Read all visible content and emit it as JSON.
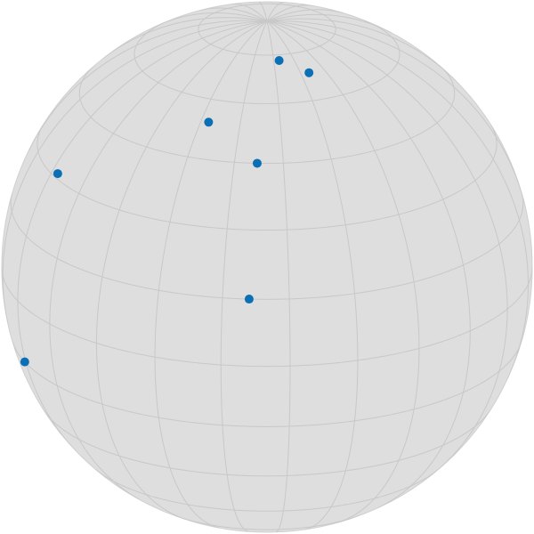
{
  "sphere": {
    "fill_color": "#dedede",
    "grid_color": "#c8c8c8",
    "outline_color": "#d0d0d0",
    "point_color": "#0a6fb5"
  },
  "view": {
    "tilt_deg": 22,
    "yaw_deg": 5
  },
  "grid": {
    "latitudes_deg": [
      -75,
      -60,
      -45,
      -30,
      -15,
      0,
      15,
      30,
      45,
      60,
      75
    ],
    "longitudes_deg": [
      0,
      15,
      30,
      45,
      60,
      75,
      90,
      105,
      120,
      135,
      150,
      165,
      180,
      195,
      210,
      225,
      240,
      255,
      270,
      285,
      300,
      315,
      330,
      345
    ]
  },
  "points": [
    {
      "lat": 68,
      "lon": 20
    },
    {
      "lat": 73,
      "lon": 4
    },
    {
      "lat": 54,
      "lon": -27
    },
    {
      "lat": 45,
      "lon": -8
    },
    {
      "lat": 31,
      "lon": -72
    },
    {
      "lat": 15,
      "lon": -9
    },
    {
      "lat": -15,
      "lon": -76
    }
  ]
}
